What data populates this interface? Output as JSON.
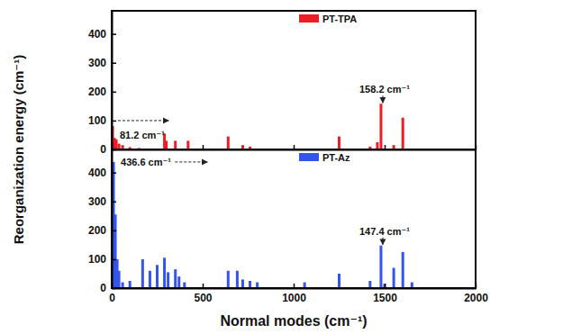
{
  "chart_data": [
    {
      "type": "bar",
      "x": [
        5,
        15,
        25,
        40,
        60,
        100,
        150,
        290,
        300,
        350,
        420,
        640,
        720,
        760,
        1250,
        1420,
        1460,
        1480,
        1550,
        1600
      ],
      "series": [
        {
          "name": "PT-TPA",
          "color": "#ee1c25",
          "values": [
            81.2,
            40,
            35,
            20,
            15,
            8,
            5,
            55,
            30,
            30,
            30,
            45,
            15,
            10,
            45,
            10,
            25,
            158.2,
            15,
            110
          ]
        }
      ],
      "xlim": [
        0,
        2000
      ],
      "xticks": [
        0,
        500,
        1000,
        1500,
        2000
      ],
      "ylim": [
        0,
        480
      ],
      "yticks": [
        0,
        100,
        200,
        300,
        400
      ],
      "ylabel": "Reorganization energy (cm⁻¹)",
      "legend": "top",
      "tick_labels": "y",
      "annotations": [
        {
          "text": "81.2 cm⁻¹",
          "x": 5
        },
        {
          "text": "158.2 cm⁻¹",
          "x": 1480
        }
      ]
    },
    {
      "type": "bar",
      "x": [
        10,
        20,
        30,
        40,
        60,
        100,
        170,
        210,
        250,
        290,
        310,
        350,
        370,
        400,
        640,
        690,
        720,
        760,
        800,
        1060,
        1250,
        1420,
        1480,
        1500,
        1550,
        1600,
        1650
      ],
      "series": [
        {
          "name": "PT-Az",
          "color": "#3355ee",
          "values": [
            436.6,
            255,
            100,
            60,
            20,
            25,
            100,
            60,
            80,
            105,
            55,
            65,
            40,
            20,
            60,
            60,
            30,
            25,
            20,
            20,
            50,
            25,
            147.4,
            15,
            70,
            125,
            20
          ]
        }
      ],
      "xlim": [
        0,
        2000
      ],
      "xticks": [
        0,
        500,
        1000,
        1500,
        2000
      ],
      "ylim": [
        0,
        480
      ],
      "yticks": [
        0,
        100,
        200,
        300,
        400
      ],
      "xlabel": "Normal modes (cm⁻¹)",
      "legend": "top",
      "annotations": [
        {
          "text": "436.6 cm⁻¹",
          "x": 10
        },
        {
          "text": "147.4 cm⁻¹",
          "x": 1480
        }
      ]
    }
  ]
}
